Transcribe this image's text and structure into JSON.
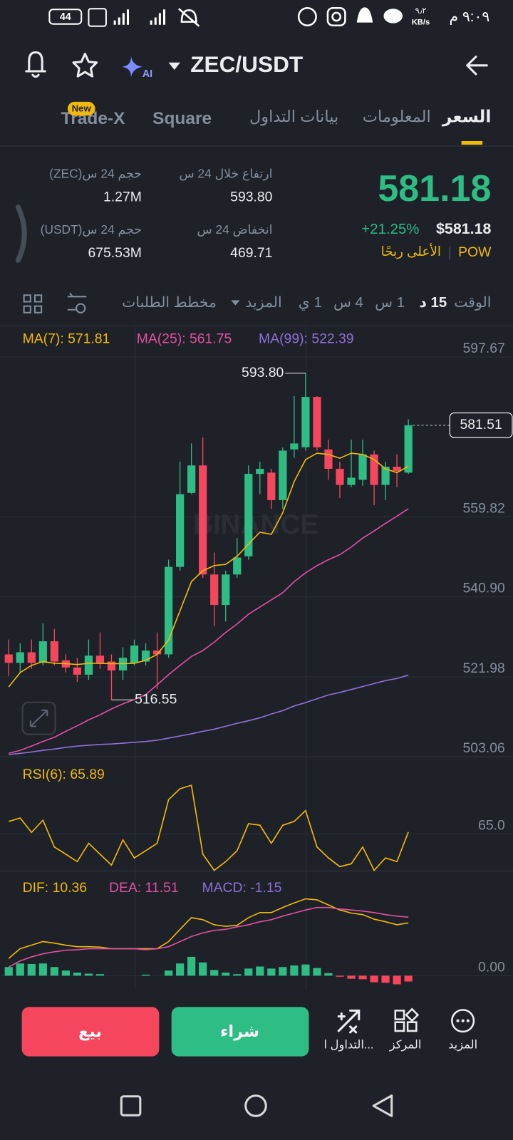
{
  "status_bar": {
    "time": "٩:٠٩ م",
    "speed": "٩٫٢",
    "speed_unit": "KB/s",
    "battery": "44"
  },
  "header": {
    "pair": "ZEC/USDT"
  },
  "tabs": {
    "items": [
      "السعر",
      "المعلومات",
      "بيانات التداول",
      "Square",
      "Trade-X"
    ],
    "badge": "New"
  },
  "price": {
    "last": "581.18",
    "change": "+21.25%",
    "usd": "$581.18",
    "tag": "POW",
    "rank": "الأعلى ربحًا"
  },
  "stats": [
    {
      "label": "ارتفاع خلال 24 س",
      "value": "593.80"
    },
    {
      "label": "انخفاض 24 س",
      "value": "469.71"
    },
    {
      "label": "حجم 24 س(ZEC)",
      "value": "1.27M"
    },
    {
      "label": "حجم 24 س(USDT)",
      "value": "675.53M"
    }
  ],
  "intervals": {
    "label": "الوقت",
    "items": [
      "15 د",
      "1 س",
      "4 س",
      "1 ي"
    ],
    "more": "المزيد",
    "depth": "مخطط الطلبات"
  },
  "chart_data": [
    {
      "type": "candlestick",
      "watermark": "BINANCE",
      "up_color": "#2ebd85",
      "down_color": "#f6465d",
      "open": [
        527.3,
        525.3,
        527.8,
        525.3,
        530.4,
        525.9,
        524.2,
        522.5,
        527.0,
        525.6,
        523.5,
        525.3,
        525.6,
        528.2,
        527.3,
        548.0,
        565.5,
        572.0,
        546.2,
        539.0,
        546.2,
        550.5,
        570.0,
        570.3,
        563.8,
        575.8,
        576.3,
        588.2,
        575.8,
        571.2,
        567.4,
        568.6,
        574.6,
        567.4,
        571.7,
        570.3
      ],
      "high": [
        530.8,
        529.9,
        530.8,
        534.7,
        533.3,
        527.3,
        526.5,
        530.8,
        532.5,
        527.3,
        529.0,
        530.8,
        529.9,
        532.5,
        549.7,
        572.9,
        577.2,
        578.6,
        551.4,
        547.1,
        554.8,
        572.0,
        572.9,
        571.2,
        576.3,
        588.4,
        593.8,
        588.4,
        578.1,
        572.9,
        578.1,
        578.1,
        575.5,
        572.9,
        574.6,
        582.9
      ],
      "low": [
        522.2,
        523.0,
        523.9,
        524.7,
        524.7,
        523.0,
        520.8,
        521.3,
        523.9,
        516.55,
        521.3,
        524.7,
        524.7,
        519.1,
        526.5,
        547.1,
        565.2,
        545.4,
        533.9,
        535.1,
        545.4,
        549.7,
        565.2,
        561.7,
        561.7,
        573.8,
        575.5,
        575.5,
        568.6,
        564.3,
        566.9,
        567.2,
        562.6,
        563.8,
        566.9,
        570.0
      ],
      "close": [
        525.3,
        527.8,
        525.3,
        530.4,
        525.6,
        524.2,
        522.5,
        527.0,
        525.3,
        523.5,
        526.5,
        529.4,
        528.2,
        527.3,
        548.0,
        565.2,
        572.0,
        546.2,
        539.0,
        546.2,
        550.2,
        570.0,
        571.2,
        563.8,
        575.5,
        577.2,
        588.2,
        576.3,
        571.2,
        567.4,
        569.1,
        574.6,
        567.4,
        571.7,
        570.7,
        581.51
      ],
      "series": [
        {
          "label": "MA(7): 571.81",
          "color": "#f0b90b",
          "values": [
            519.6,
            523.0,
            524.7,
            525.6,
            525.2,
            525.1,
            524.9,
            525.2,
            525.2,
            525.1,
            525.1,
            525.2,
            525.9,
            527.3,
            530.7,
            537.6,
            544.5,
            547.1,
            548.3,
            548.6,
            550.5,
            553.4,
            556.2,
            555.7,
            560.8,
            568.2,
            573.4,
            574.9,
            574.6,
            573.7,
            574.9,
            574.6,
            573.4,
            571.2,
            570.3,
            571.81
          ]
        },
        {
          "label": "MA(25): 561.75",
          "color": "#e0509f",
          "values": [
            503.9,
            504.6,
            505.6,
            506.7,
            507.7,
            509.1,
            510.4,
            511.8,
            513.0,
            514.4,
            515.6,
            516.6,
            517.8,
            520.1,
            522.5,
            524.7,
            526.8,
            528.2,
            530.2,
            532.5,
            534.5,
            536.8,
            538.5,
            540.2,
            541.9,
            544.5,
            546.6,
            548.3,
            549.7,
            550.9,
            552.7,
            554.8,
            556.5,
            558.3,
            560.0,
            561.75
          ]
        },
        {
          "label": "MA(99): 522.39",
          "color": "#9070d8",
          "values": [
            503.6,
            503.9,
            504.2,
            504.6,
            504.9,
            505.3,
            505.6,
            505.8,
            506.0,
            506.1,
            506.3,
            506.5,
            506.7,
            507.0,
            507.5,
            508.0,
            508.5,
            509.1,
            509.6,
            510.3,
            511.0,
            511.6,
            512.3,
            513.2,
            514.0,
            515.1,
            515.9,
            516.8,
            517.7,
            518.3,
            519.0,
            519.7,
            520.4,
            521.1,
            521.6,
            522.39
          ]
        }
      ],
      "annotations": [
        {
          "value": 593.8,
          "label": "593.80"
        },
        {
          "value": 516.55,
          "label": "516.55"
        }
      ],
      "current_price": 581.51,
      "ylim": [
        503.06,
        604.71
      ],
      "yticks": [
        597.67,
        559.82,
        {
          "value": 540.9,
          "label": "540.90"
        },
        521.98,
        503.06
      ],
      "grid": true
    },
    {
      "type": "line",
      "series": [
        {
          "label": "RSI(6): 65.89",
          "color": "#f0b90b",
          "values": [
            70.7,
            72.3,
            65.7,
            71.3,
            59.0,
            55.7,
            52.3,
            60.7,
            55.7,
            50.7,
            62.3,
            54.0,
            57.3,
            60.7,
            80.7,
            85.7,
            87.3,
            55.7,
            48.3,
            52.3,
            57.3,
            69.7,
            69.0,
            60.7,
            69.0,
            70.7,
            75.7,
            59.0,
            54.0,
            50.0,
            51.3,
            59.0,
            48.3,
            54.0,
            52.3,
            65.89
          ]
        }
      ],
      "ylim": [
        48,
        100.33
      ],
      "yticks": [
        {
          "value": 65,
          "label": "65.0"
        }
      ],
      "grid": true
    },
    {
      "type": "macd",
      "up_color": "#2ebd85",
      "down_color": "#f6465d",
      "series": [
        {
          "label": "DIF: 10.36",
          "color": "#f0b90b",
          "values": [
            3.4,
            5.3,
            6.0,
            6.7,
            6.4,
            6.0,
            5.7,
            5.7,
            5.6,
            5.3,
            5.3,
            5.3,
            5.3,
            5.3,
            6.7,
            9.1,
            11.4,
            11.0,
            10.0,
            9.7,
            9.9,
            11.4,
            12.4,
            12.4,
            13.4,
            14.3,
            15.1,
            14.9,
            13.9,
            12.9,
            12.3,
            12.0,
            11.1,
            10.6,
            10.0,
            10.36
          ]
        },
        {
          "label": "DEA: 11.51",
          "color": "#e0509f",
          "values": [
            1.7,
            2.9,
            3.7,
            4.3,
            4.7,
            5.0,
            5.1,
            5.3,
            5.3,
            5.3,
            5.3,
            5.3,
            5.1,
            5.3,
            5.7,
            6.7,
            7.7,
            8.4,
            8.9,
            9.1,
            9.6,
            10.0,
            10.6,
            11.0,
            11.7,
            12.3,
            12.9,
            13.4,
            13.4,
            13.1,
            12.9,
            12.7,
            12.4,
            12.0,
            11.7,
            11.51
          ]
        },
        {
          "label": "MACD: -1.15",
          "color": "#9070d8",
          "bars": true,
          "values": [
            1.7,
            2.4,
            2.3,
            2.4,
            1.7,
            1.0,
            0.6,
            0.4,
            0.3,
            0,
            0,
            0,
            0.2,
            0,
            1.0,
            2.4,
            3.7,
            2.6,
            1.1,
            0.6,
            0.3,
            1.4,
            1.8,
            1.4,
            1.7,
            2.0,
            2.2,
            1.5,
            0.5,
            -0.2,
            -0.6,
            -0.7,
            -1.3,
            -1.4,
            -1.7,
            -1.15
          ]
        }
      ],
      "ylim": [
        -2.29,
        20.57
      ],
      "yticks": [
        {
          "value": 0,
          "label": "0.00"
        }
      ],
      "grid": true
    }
  ],
  "actions": {
    "sell": "بيع",
    "buy": "شراء",
    "tools": [
      "التداول ا...",
      "المركز",
      "المزيد"
    ]
  }
}
